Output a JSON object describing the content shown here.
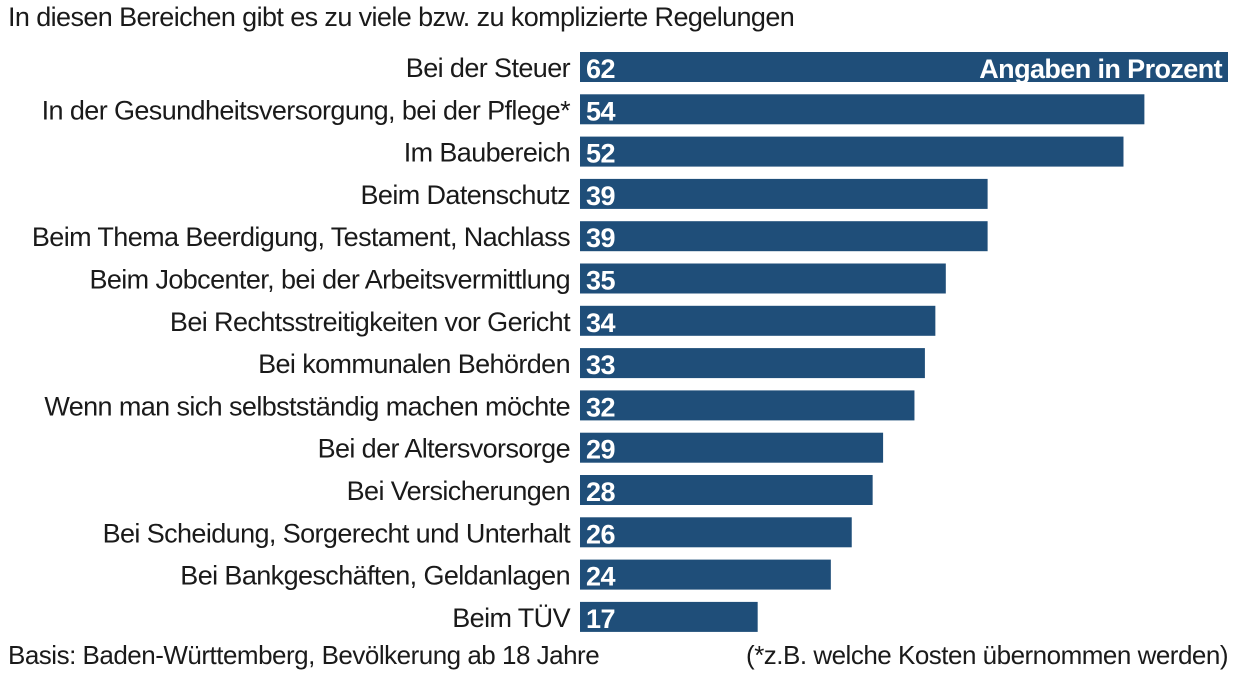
{
  "chart_data": {
    "type": "bar",
    "orientation": "horizontal",
    "title": "In diesen Bereichen gibt es zu viele bzw. zu komplizierte Regelungen",
    "unit_label": "Angaben in Prozent",
    "categories": [
      "Bei der Steuer",
      "In der Gesundheitsversorgung, bei der Pflege*",
      "Im Baubereich",
      "Beim Datenschutz",
      "Beim Thema Beerdigung, Testament, Nachlass",
      "Beim Jobcenter, bei der Arbeitsvermittlung",
      "Bei Rechtsstreitigkeiten vor Gericht",
      "Bei kommunalen Behörden",
      "Wenn man sich selbstständig machen möchte",
      "Bei der Altersvorsorge",
      "Bei Versicherungen",
      "Bei Scheidung, Sorgerecht und Unterhalt",
      "Bei Bankgeschäften, Geldanlagen",
      "Beim TÜV"
    ],
    "values": [
      62,
      54,
      52,
      39,
      39,
      35,
      34,
      33,
      32,
      29,
      28,
      26,
      24,
      17
    ],
    "xlim": [
      0,
      62
    ],
    "bar_color": "#1f4e79",
    "grid": false,
    "legend": "none"
  },
  "footer": {
    "source": "Basis: Baden-Württemberg, Bevölkerung ab 18 Jahre",
    "note": "(*z.B. welche Kosten übernommen werden)"
  }
}
